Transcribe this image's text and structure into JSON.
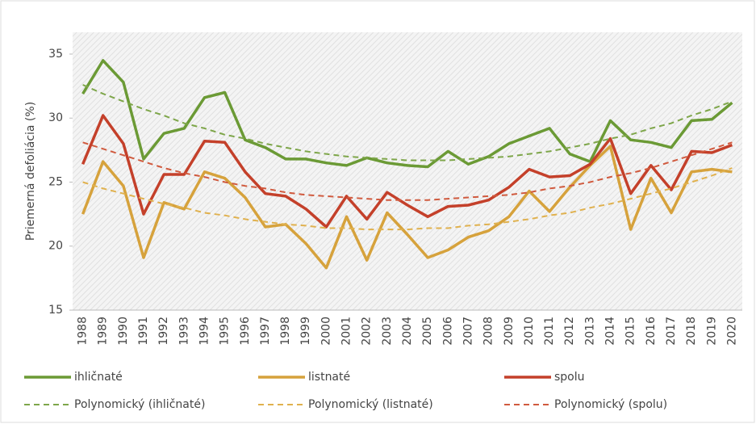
{
  "chart_data": {
    "type": "line",
    "ylabel": "Priemerná defoliácia (%)",
    "categories": [
      "1988",
      "1989",
      "1990",
      "1991",
      "1992",
      "1993",
      "1994",
      "1995",
      "1996",
      "1997",
      "1998",
      "1999",
      "2000",
      "2001",
      "2002",
      "2003",
      "2004",
      "2005",
      "2006",
      "2007",
      "2008",
      "2009",
      "2010",
      "2011",
      "2012",
      "2013",
      "2014",
      "2015",
      "2016",
      "2017",
      "2018",
      "2019",
      "2020"
    ],
    "ylim": [
      15,
      36.7
    ],
    "yticks": [
      15,
      20,
      25,
      30,
      35
    ],
    "grid": false,
    "legend": "bottom",
    "series": [
      {
        "name": "ihličnaté",
        "color": "#6b9a35",
        "dashed": false,
        "values": [
          31.9,
          34.5,
          32.8,
          26.8,
          28.8,
          29.2,
          31.6,
          32.0,
          28.3,
          27.7,
          26.8,
          26.8,
          26.5,
          26.3,
          26.9,
          26.5,
          26.3,
          26.2,
          27.4,
          26.4,
          27.0,
          28.0,
          28.6,
          29.2,
          27.2,
          26.6,
          29.8,
          28.3,
          28.1,
          27.7,
          29.8,
          29.9,
          31.2
        ]
      },
      {
        "name": "listnaté",
        "color": "#d6a23c",
        "dashed": false,
        "values": [
          22.5,
          26.6,
          24.7,
          19.1,
          23.4,
          22.9,
          25.8,
          25.3,
          23.8,
          21.5,
          21.7,
          20.2,
          18.3,
          22.3,
          18.9,
          22.6,
          20.9,
          19.1,
          19.7,
          20.7,
          21.2,
          22.3,
          24.3,
          22.7,
          24.6,
          26.3,
          27.8,
          21.3,
          25.3,
          22.6,
          25.8,
          26.0,
          25.8
        ]
      },
      {
        "name": "spolu",
        "color": "#c4402a",
        "dashed": false,
        "values": [
          26.4,
          30.2,
          28.0,
          22.5,
          25.6,
          25.6,
          28.2,
          28.1,
          25.8,
          24.1,
          23.9,
          22.9,
          21.5,
          23.9,
          22.1,
          24.2,
          23.2,
          22.3,
          23.1,
          23.2,
          23.6,
          24.6,
          26.0,
          25.4,
          25.5,
          26.4,
          28.4,
          24.1,
          26.3,
          24.4,
          27.4,
          27.3,
          27.9
        ]
      },
      {
        "name": "Polynomický (ihličnaté)",
        "color": "#7ea64a",
        "dashed": true,
        "values": [
          32.6,
          31.9,
          31.3,
          30.7,
          30.2,
          29.6,
          29.2,
          28.7,
          28.4,
          28.0,
          27.7,
          27.4,
          27.2,
          27.0,
          26.9,
          26.8,
          26.7,
          26.7,
          26.7,
          26.8,
          26.9,
          27.0,
          27.2,
          27.4,
          27.7,
          28.0,
          28.4,
          28.7,
          29.2,
          29.6,
          30.2,
          30.7,
          31.3
        ]
      },
      {
        "name": "Polynomický (listnaté)",
        "color": "#e0b14e",
        "dashed": true,
        "values": [
          25.0,
          24.5,
          24.1,
          23.7,
          23.3,
          23.0,
          22.6,
          22.4,
          22.1,
          21.9,
          21.7,
          21.6,
          21.4,
          21.4,
          21.3,
          21.3,
          21.3,
          21.4,
          21.4,
          21.6,
          21.7,
          21.9,
          22.1,
          22.4,
          22.6,
          23.0,
          23.3,
          23.7,
          24.1,
          24.5,
          25.0,
          25.5,
          26.1
        ]
      },
      {
        "name": "Polynomický (spolu)",
        "color": "#d05a3e",
        "dashed": true,
        "values": [
          28.1,
          27.6,
          27.1,
          26.6,
          26.1,
          25.7,
          25.4,
          25.0,
          24.7,
          24.5,
          24.2,
          24.0,
          23.9,
          23.8,
          23.7,
          23.6,
          23.6,
          23.6,
          23.7,
          23.8,
          23.9,
          24.0,
          24.2,
          24.5,
          24.7,
          25.0,
          25.4,
          25.7,
          26.1,
          26.6,
          27.1,
          27.6,
          28.1
        ]
      }
    ]
  }
}
